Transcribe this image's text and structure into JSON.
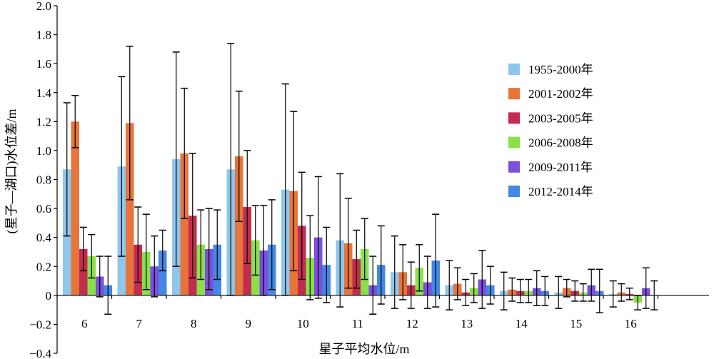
{
  "chart_data": {
    "type": "bar",
    "xlabel": "星子平均水位/m",
    "ylabel": "(星子—湖口)水位差/m",
    "categories": [
      "6",
      "7",
      "8",
      "9",
      "10",
      "11",
      "12",
      "13",
      "14",
      "15",
      "16"
    ],
    "ylim": [
      -0.4,
      2.0
    ],
    "yticks": [
      "−0.4",
      "−0.2",
      "0",
      "0.2",
      "0.4",
      "0.6",
      "0.8",
      "1.0",
      "1.2",
      "1.4",
      "1.6",
      "1.8",
      "2.0"
    ],
    "ytick_values": [
      -0.4,
      -0.2,
      0,
      0.2,
      0.4,
      0.6,
      0.8,
      1.0,
      1.2,
      1.4,
      1.6,
      1.8,
      2.0
    ],
    "grid": false,
    "legend_position": "right",
    "series": [
      {
        "name": "1955-2000年",
        "color": "#8ec6ec",
        "values": [
          0.87,
          0.89,
          0.94,
          0.87,
          0.73,
          0.38,
          0.16,
          0.07,
          0.03,
          0.02,
          0.01
        ],
        "errors": [
          0.46,
          0.62,
          0.74,
          0.87,
          0.73,
          0.46,
          0.25,
          0.17,
          0.13,
          0.11,
          0.09
        ]
      },
      {
        "name": "2001-2002年",
        "color": "#e7743a",
        "values": [
          1.2,
          1.19,
          0.98,
          0.96,
          0.72,
          0.36,
          0.16,
          0.08,
          0.04,
          0.05,
          0.02
        ],
        "errors": [
          0.18,
          0.53,
          0.45,
          0.45,
          0.55,
          0.31,
          0.19,
          0.11,
          0.08,
          0.06,
          0.06
        ]
      },
      {
        "name": "2003-2005年",
        "color": "#c22c4f",
        "values": [
          0.32,
          0.35,
          0.55,
          0.61,
          0.48,
          0.25,
          0.07,
          0.02,
          0.03,
          0.03,
          0.01
        ],
        "errors": [
          0.15,
          0.26,
          0.43,
          0.39,
          0.37,
          0.2,
          0.16,
          0.09,
          0.08,
          0.07,
          0.04
        ]
      },
      {
        "name": "2006-2008年",
        "color": "#8be04a",
        "values": [
          0.27,
          0.3,
          0.35,
          0.38,
          0.26,
          0.32,
          0.19,
          0.05,
          0.03,
          0.02,
          -0.05
        ],
        "errors": [
          0.15,
          0.26,
          0.24,
          0.24,
          0.29,
          0.21,
          0.16,
          0.1,
          0.08,
          0.06,
          0.05
        ]
      },
      {
        "name": "2009-2011年",
        "color": "#7c4fdc",
        "values": [
          0.13,
          0.2,
          0.32,
          0.31,
          0.4,
          0.07,
          0.09,
          0.11,
          0.05,
          0.07,
          0.05
        ],
        "errors": [
          0.14,
          0.21,
          0.28,
          0.31,
          0.42,
          0.2,
          0.18,
          0.2,
          0.12,
          0.11,
          0.14
        ]
      },
      {
        "name": "2012-2014年",
        "color": "#4388e4",
        "values": [
          0.07,
          0.31,
          0.35,
          0.35,
          0.21,
          0.21,
          0.24,
          0.07,
          0.03,
          0.03,
          0.0
        ],
        "errors": [
          0.2,
          0.14,
          0.24,
          0.31,
          0.26,
          0.27,
          0.32,
          0.13,
          0.1,
          0.15,
          0.1
        ]
      }
    ]
  }
}
